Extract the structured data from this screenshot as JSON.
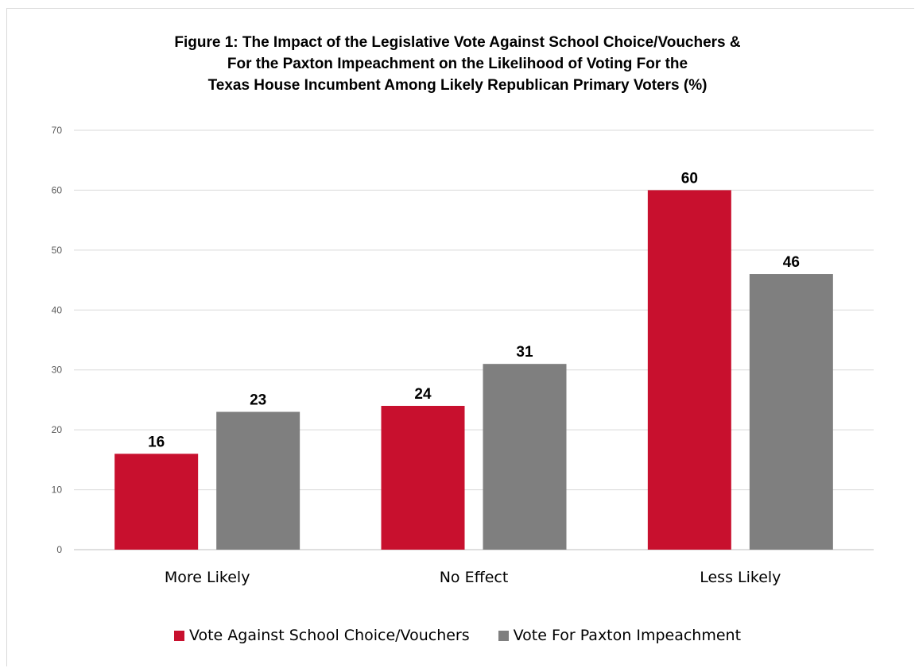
{
  "chart_data": {
    "type": "bar",
    "title_lines": [
      "Figure 1: The Impact of the Legislative Vote Against School Choice/Vouchers &",
      "For the Paxton Impeachment on the Likelihood of Voting For the",
      "Texas House Incumbent Among Likely Republican Primary Voters (%)"
    ],
    "categories": [
      "More Likely",
      "No Effect",
      "Less Likely"
    ],
    "series": [
      {
        "name": "Vote Against School Choice/Vouchers",
        "values": [
          16,
          24,
          60
        ],
        "color": "#c8102e"
      },
      {
        "name": "Vote For Paxton Impeachment",
        "values": [
          23,
          31,
          46
        ],
        "color": "#7f7f7f"
      }
    ],
    "ylim": [
      0,
      70
    ],
    "yticks": [
      0,
      10,
      20,
      30,
      40,
      50,
      60,
      70
    ],
    "grid": true,
    "legend_position": "bottom"
  }
}
